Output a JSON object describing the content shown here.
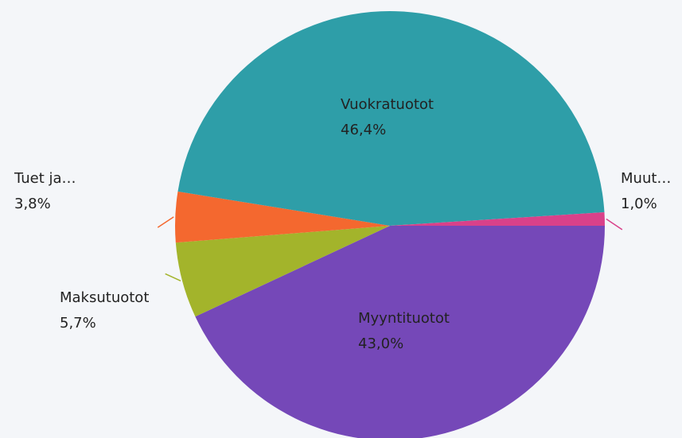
{
  "chart_data": {
    "type": "pie",
    "categories": [
      "Myyntituotot",
      "Maksutuotot",
      "Tuet ja…",
      "Vuokratuotot",
      "Muut…"
    ],
    "values": [
      43.0,
      5.7,
      3.8,
      46.4,
      1.0
    ],
    "value_labels": [
      "43,0%",
      "5,7%",
      "3,8%",
      "46,4%",
      "1,0%"
    ],
    "colors": [
      "#7548b8",
      "#a3b42b",
      "#f4682f",
      "#2e9ea8",
      "#d9418a"
    ]
  }
}
